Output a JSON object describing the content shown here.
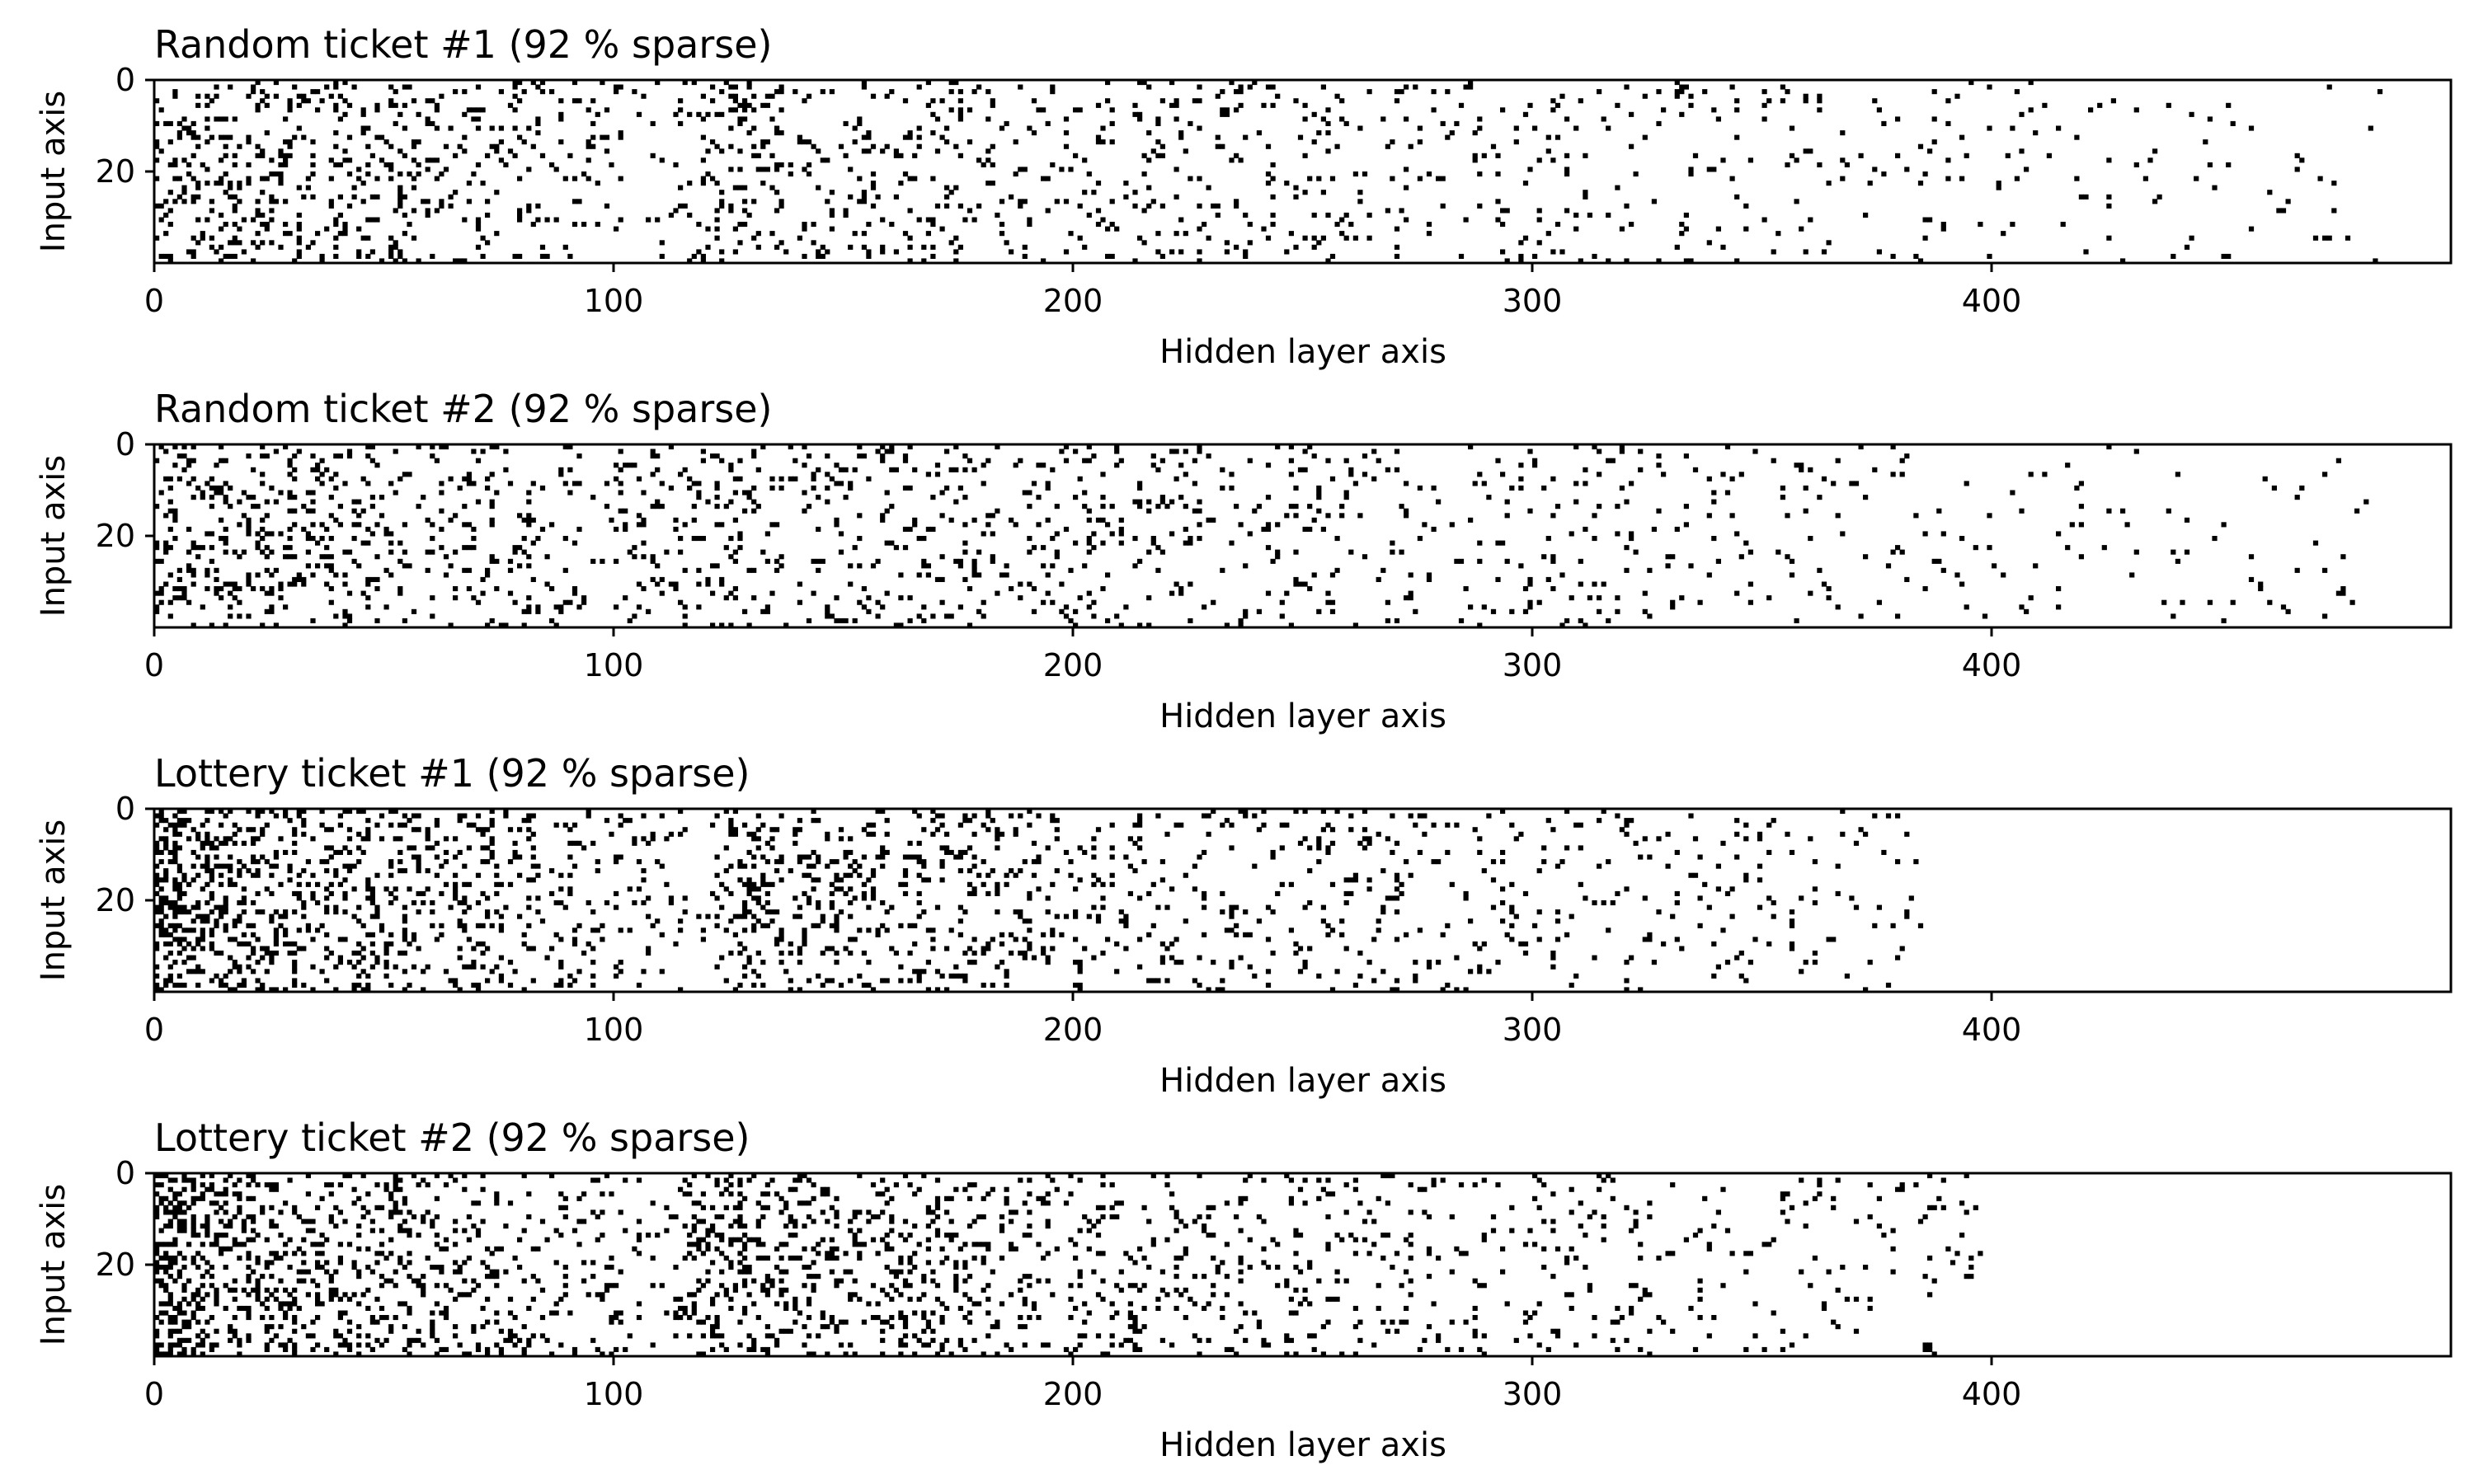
{
  "chart_data": [
    {
      "type": "heatmap",
      "title": "Random ticket #1 (92 % sparse)",
      "xlabel": "Hidden layer axis",
      "ylabel": "Input axis",
      "xlim": [
        0,
        500
      ],
      "ylim": [
        40,
        0
      ],
      "xticks": [
        "0",
        "100",
        "200",
        "300",
        "400"
      ],
      "yticks": [
        "0",
        "20"
      ],
      "sparsity_percent": 92,
      "active_extent_x": [
        0,
        485
      ],
      "colors": {
        "active": "#000000",
        "pruned": "#ffffff"
      },
      "density_profile": [
        {
          "x": 0,
          "density": 0.18
        },
        {
          "x": 100,
          "density": 0.08
        },
        {
          "x": 110,
          "density": 0.02
        },
        {
          "x": 120,
          "density": 0.12
        },
        {
          "x": 200,
          "density": 0.08
        },
        {
          "x": 300,
          "density": 0.055
        },
        {
          "x": 400,
          "density": 0.03
        },
        {
          "x": 485,
          "density": 0.015
        }
      ],
      "grid": false
    },
    {
      "type": "heatmap",
      "title": "Random ticket #2 (92 % sparse)",
      "xlabel": "Hidden layer axis",
      "ylabel": "Input axis",
      "xlim": [
        0,
        500
      ],
      "ylim": [
        40,
        0
      ],
      "xticks": [
        "0",
        "100",
        "200",
        "300",
        "400"
      ],
      "yticks": [
        "0",
        "20"
      ],
      "sparsity_percent": 92,
      "active_extent_x": [
        0,
        485
      ],
      "colors": {
        "active": "#000000",
        "pruned": "#ffffff"
      },
      "density_profile": [
        {
          "x": 0,
          "density": 0.18
        },
        {
          "x": 90,
          "density": 0.08
        },
        {
          "x": 97,
          "density": 0.03
        },
        {
          "x": 105,
          "density": 0.12
        },
        {
          "x": 200,
          "density": 0.08
        },
        {
          "x": 300,
          "density": 0.055
        },
        {
          "x": 400,
          "density": 0.03
        },
        {
          "x": 485,
          "density": 0.015
        }
      ],
      "grid": false
    },
    {
      "type": "heatmap",
      "title": "Lottery ticket #1 (92 % sparse)",
      "xlabel": "Hidden layer axis",
      "ylabel": "Input axis",
      "xlim": [
        0,
        500
      ],
      "ylim": [
        40,
        0
      ],
      "xticks": [
        "0",
        "100",
        "200",
        "300",
        "400"
      ],
      "yticks": [
        "0",
        "20"
      ],
      "sparsity_percent": 92,
      "active_extent_x": [
        0,
        385
      ],
      "colors": {
        "active": "#000000",
        "pruned": "#ffffff"
      },
      "density_profile": [
        {
          "x": 0,
          "density": 0.45
        },
        {
          "x": 10,
          "density": 0.28
        },
        {
          "x": 40,
          "density": 0.2
        },
        {
          "x": 110,
          "density": 0.08
        },
        {
          "x": 120,
          "density": 0.03
        },
        {
          "x": 125,
          "density": 0.2
        },
        {
          "x": 200,
          "density": 0.11
        },
        {
          "x": 300,
          "density": 0.06
        },
        {
          "x": 385,
          "density": 0.03
        }
      ],
      "grid": false
    },
    {
      "type": "heatmap",
      "title": "Lottery ticket #2 (92 % sparse)",
      "xlabel": "Hidden layer axis",
      "ylabel": "Input axis",
      "xlim": [
        0,
        500
      ],
      "ylim": [
        40,
        0
      ],
      "xticks": [
        "0",
        "100",
        "200",
        "300",
        "400"
      ],
      "yticks": [
        "0",
        "20"
      ],
      "sparsity_percent": 92,
      "active_extent_x": [
        0,
        398
      ],
      "colors": {
        "active": "#000000",
        "pruned": "#ffffff"
      },
      "density_profile": [
        {
          "x": 0,
          "density": 0.45
        },
        {
          "x": 10,
          "density": 0.28
        },
        {
          "x": 40,
          "density": 0.2
        },
        {
          "x": 100,
          "density": 0.08
        },
        {
          "x": 112,
          "density": 0.04
        },
        {
          "x": 117,
          "density": 0.22
        },
        {
          "x": 200,
          "density": 0.11
        },
        {
          "x": 300,
          "density": 0.06
        },
        {
          "x": 398,
          "density": 0.03
        }
      ],
      "grid": false
    }
  ]
}
